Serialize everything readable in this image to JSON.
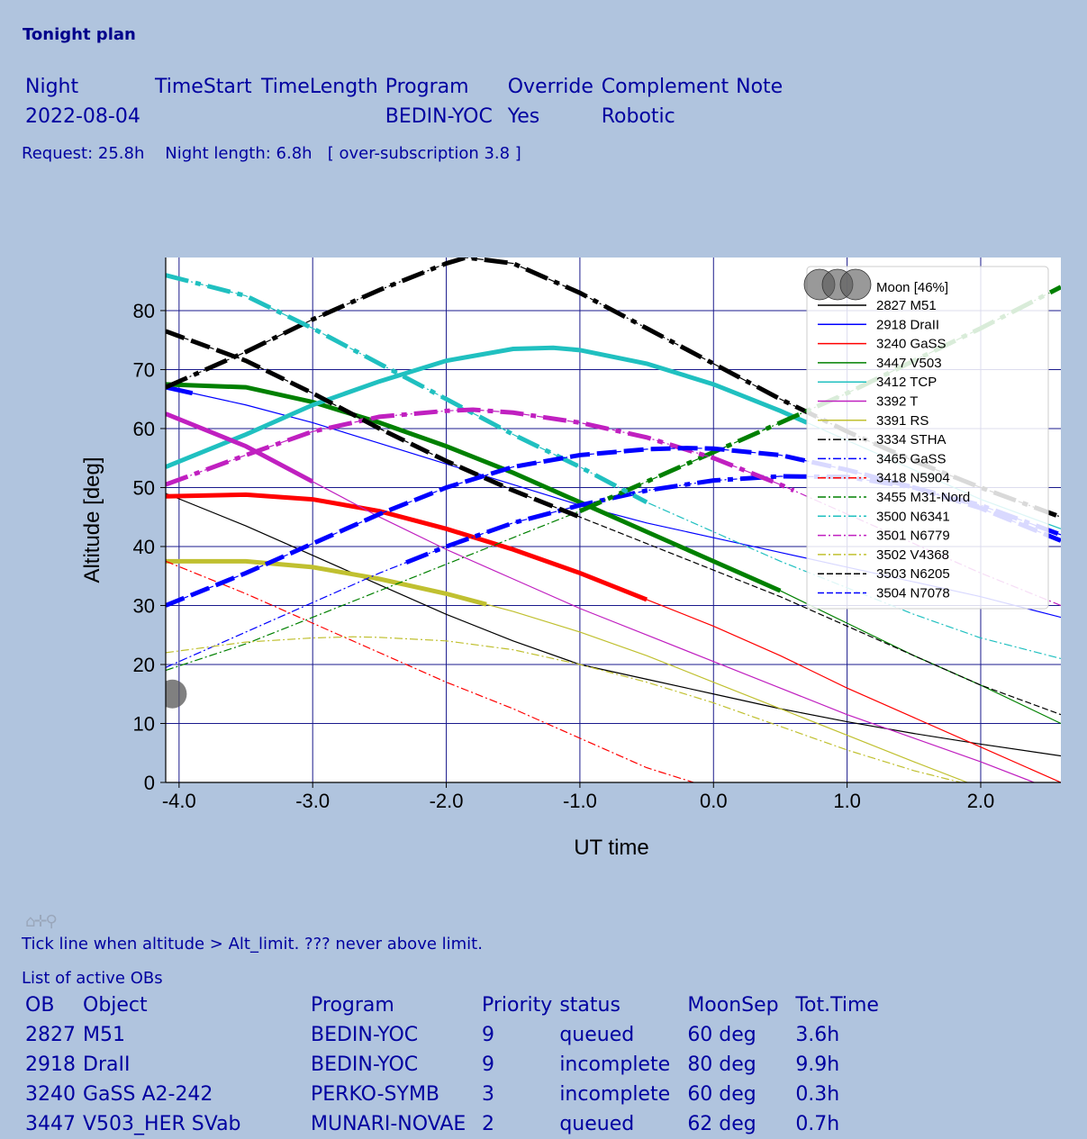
{
  "page": {
    "title": "Tonight plan",
    "night_headers": [
      "Night",
      "TimeStart",
      "TimeLength",
      "Program",
      "Override",
      "Complement",
      "Note"
    ],
    "night_row": [
      "2022-08-04",
      "",
      "",
      "BEDIN-YOC",
      "Yes",
      "Robotic",
      ""
    ],
    "summary": "Request: 25.8h    Night length: 6.8h   [ over-subscription 3.8 ]",
    "tick_note": "Tick line when altitude > Alt_limit. ??? never above limit.",
    "list_title": "List of active OBs",
    "ob_headers": [
      "OB",
      "Object",
      "Program",
      "Priority",
      "status",
      "MoonSep",
      "Tot.Time"
    ],
    "ob_rows": [
      [
        "2827",
        "M51",
        "BEDIN-YOC",
        "9",
        "queued",
        "60 deg",
        "3.6h"
      ],
      [
        "2918",
        "DraII",
        "BEDIN-YOC",
        "9",
        "incomplete",
        "80 deg",
        "9.9h"
      ],
      [
        "3240",
        "GaSS A2-242",
        "PERKO-SYMB",
        "3",
        "incomplete",
        "60 deg",
        "0.3h"
      ],
      [
        "3447",
        "V503_HER SVab",
        "MUNARI-NOVAE",
        "2",
        "queued",
        "62 deg",
        "0.7h"
      ]
    ],
    "toolbar_icons": [
      "home-icon",
      "pan-icon",
      "zoom-icon"
    ]
  },
  "chart_data": {
    "type": "line",
    "xlabel": "UT time",
    "ylabel": "Altitude [deg]",
    "xlim": [
      -4.1,
      2.6
    ],
    "ylim": [
      0,
      89
    ],
    "xticks": [
      -4.0,
      -3.0,
      -2.0,
      -1.0,
      0.0,
      1.0,
      2.0
    ],
    "xtick_labels": [
      "-4.0",
      "-3.0",
      "-2.0",
      "-1.0",
      "0.0",
      "1.0",
      "2.0"
    ],
    "yticks": [
      0,
      10,
      20,
      30,
      40,
      50,
      60,
      70,
      80
    ],
    "ytick_labels": [
      "0",
      "10",
      "20",
      "30",
      "40",
      "50",
      "60",
      "70",
      "80"
    ],
    "grid": true,
    "legend_placement": "top-right",
    "moon": {
      "label": "Moon [46%]",
      "color": "#555555",
      "x": -4.05,
      "y": 15
    },
    "series": [
      {
        "name": "2827 M51",
        "color": "#000000",
        "style": "solid",
        "width": 1.2,
        "x": [
          -4.1,
          -3.5,
          -3.0,
          -2.5,
          -2.0,
          -1.5,
          -1.0,
          -0.5,
          0.0,
          0.5,
          1.0,
          1.5,
          2.0,
          2.6
        ],
        "y": [
          49,
          43.5,
          38.5,
          33.5,
          28.5,
          24,
          20,
          17.5,
          15,
          12.5,
          10.3,
          8.3,
          6.5,
          4.5
        ],
        "thick": [
          -4.1,
          -4.1
        ]
      },
      {
        "name": "2918 DraII",
        "color": "#0000ff",
        "style": "solid",
        "width": 1.2,
        "x": [
          -4.1,
          -3.5,
          -3.0,
          -2.5,
          -2.0,
          -1.5,
          -1.0,
          -0.5,
          0.0,
          0.5,
          1.0,
          1.5,
          2.0,
          2.6
        ],
        "y": [
          67,
          64,
          61,
          57.5,
          54,
          50.5,
          47,
          44,
          41.5,
          39,
          36.5,
          34,
          31.5,
          28
        ],
        "thick": [
          -4.1,
          -3.9
        ]
      },
      {
        "name": "3240 GaSS",
        "color": "#ff0000",
        "style": "solid",
        "width": 1.2,
        "x": [
          -4.1,
          -3.5,
          -3.0,
          -2.5,
          -2.0,
          -1.5,
          -1.0,
          -0.5,
          0.0,
          0.5,
          1.0,
          1.5,
          2.0,
          2.6
        ],
        "y": [
          48.5,
          48.8,
          48,
          46,
          43,
          39.5,
          35.5,
          31,
          26.5,
          21.5,
          16,
          11,
          6,
          0
        ],
        "thick": [
          -4.1,
          -0.5
        ]
      },
      {
        "name": "3447 V503",
        "color": "#008000",
        "style": "solid",
        "width": 1.2,
        "x": [
          -4.1,
          -3.5,
          -3.0,
          -2.5,
          -2.0,
          -1.5,
          -1.0,
          -0.5,
          0.0,
          0.5,
          1.0,
          1.5,
          2.0,
          2.6
        ],
        "y": [
          67.5,
          67,
          64.5,
          61,
          57,
          52.5,
          47.5,
          42.5,
          37.5,
          32.5,
          27,
          21.5,
          16.5,
          10
        ],
        "thick": [
          -4.1,
          0.5
        ]
      },
      {
        "name": "3412 TCP",
        "color": "#20c0c0",
        "style": "solid",
        "width": 1.2,
        "x": [
          -4.1,
          -3.5,
          -3.0,
          -2.5,
          -2.0,
          -1.5,
          -1.2,
          -1.0,
          -0.5,
          0.0,
          0.5,
          1.0,
          1.5,
          2.0,
          2.6
        ],
        "y": [
          53.5,
          59,
          64,
          68,
          71.5,
          73.5,
          73.7,
          73.3,
          71,
          67.5,
          63,
          58,
          53,
          48,
          43
        ],
        "thick": [
          -4.1,
          0.7
        ]
      },
      {
        "name": "3392 T",
        "color": "#c020c0",
        "style": "solid",
        "width": 1.2,
        "x": [
          -4.1,
          -3.5,
          -3.0,
          -2.5,
          -2.0,
          -1.5,
          -1.0,
          -0.5,
          0.0,
          0.5,
          1.0,
          1.5,
          2.0,
          2.4
        ],
        "y": [
          62.5,
          57,
          51,
          45,
          39.5,
          34.5,
          29.5,
          25,
          20.5,
          16,
          11.5,
          7.5,
          3.5,
          0
        ],
        "thick": [
          -4.1,
          -3.0
        ]
      },
      {
        "name": "3391 RS",
        "color": "#c0c030",
        "style": "solid",
        "width": 1.2,
        "x": [
          -4.1,
          -3.5,
          -3.0,
          -2.5,
          -2.0,
          -1.5,
          -1.0,
          -0.5,
          0.0,
          0.5,
          1.0,
          1.5,
          1.9
        ],
        "y": [
          37.5,
          37.5,
          36.5,
          34.5,
          32,
          29,
          25.5,
          21.5,
          17,
          12.5,
          8,
          3.5,
          0
        ],
        "thick": [
          -4.1,
          -1.7
        ]
      },
      {
        "name": "3334 STHA",
        "color": "#000000",
        "style": "dashdot",
        "width": 1.2,
        "x": [
          -4.1,
          -3.5,
          -3.0,
          -2.5,
          -2.0,
          -1.85,
          -1.5,
          -1.0,
          -0.5,
          0.0,
          0.5,
          1.0,
          1.5,
          2.0,
          2.6
        ],
        "y": [
          67,
          73,
          78.5,
          83.5,
          88,
          89,
          88,
          83,
          77,
          71,
          65,
          59.5,
          54.5,
          50,
          45
        ],
        "thick": [
          -4.1,
          2.6
        ]
      },
      {
        "name": "3465 GaSS",
        "color": "#0000ff",
        "style": "dashdot",
        "width": 1.2,
        "x": [
          -4.1,
          -3.5,
          -3.0,
          -2.5,
          -2.0,
          -1.5,
          -1.0,
          -0.5,
          0.0,
          0.5,
          1.0,
          1.5,
          2.0,
          2.6
        ],
        "y": [
          19.5,
          25.5,
          30.5,
          35.5,
          40,
          44,
          47,
          49.5,
          51.2,
          51.9,
          51.8,
          50,
          47,
          42
        ],
        "thick": [
          -2.3,
          2.6
        ]
      },
      {
        "name": "3418 N5904",
        "color": "#ff0000",
        "style": "dashdot",
        "width": 1.2,
        "x": [
          -4.1,
          -3.5,
          -3.0,
          -2.5,
          -2.0,
          -1.5,
          -1.0,
          -0.5,
          -0.15
        ],
        "y": [
          37.5,
          32,
          27,
          22,
          17,
          12.5,
          7.5,
          2.5,
          0
        ],
        "thick": [
          -4.1,
          -4.1
        ]
      },
      {
        "name": "3455 M31-Nord",
        "color": "#008000",
        "style": "dashdot",
        "width": 1.2,
        "x": [
          -4.1,
          -3.5,
          -3.0,
          -2.5,
          -2.0,
          -1.5,
          -1.0,
          -0.5,
          0.0,
          0.5,
          1.0,
          1.5,
          2.0,
          2.6
        ],
        "y": [
          19,
          23.5,
          28,
          32.5,
          37,
          41.5,
          46,
          51,
          56,
          61,
          66,
          71.5,
          77,
          84
        ],
        "thick": [
          -1.0,
          2.6
        ]
      },
      {
        "name": "3500 N6341",
        "color": "#20c0c0",
        "style": "dashdot",
        "width": 1.2,
        "x": [
          -4.1,
          -3.5,
          -3.0,
          -2.5,
          -2.0,
          -1.5,
          -1.0,
          -0.5,
          0.0,
          0.5,
          1.0,
          1.5,
          2.0,
          2.6
        ],
        "y": [
          86,
          82.5,
          77,
          71,
          65,
          59,
          53.5,
          47.5,
          42.5,
          37.5,
          33,
          28.5,
          24.5,
          21
        ],
        "thick": [
          -4.1,
          -0.5
        ]
      },
      {
        "name": "3501 N6779",
        "color": "#c020c0",
        "style": "dashdot",
        "width": 1.2,
        "x": [
          -4.1,
          -3.5,
          -3.0,
          -2.5,
          -2.0,
          -1.8,
          -1.5,
          -1.0,
          -0.5,
          0.0,
          0.5,
          1.0,
          1.5,
          2.0,
          2.6
        ],
        "y": [
          50.5,
          55.5,
          59.5,
          62,
          63,
          63.2,
          62.7,
          61,
          58.5,
          55,
          50.5,
          45.5,
          40.5,
          35.5,
          30
        ],
        "thick": [
          -4.1,
          0.6
        ]
      },
      {
        "name": "3502 V4368",
        "color": "#c0c030",
        "style": "dashdot",
        "width": 1.2,
        "x": [
          -4.1,
          -3.5,
          -3.0,
          -2.7,
          -2.5,
          -2.0,
          -1.5,
          -1.0,
          -0.5,
          0.0,
          0.5,
          1.0,
          1.5,
          1.85
        ],
        "y": [
          22,
          23.8,
          24.5,
          24.7,
          24.6,
          24,
          22.5,
          20,
          17,
          13.5,
          9.5,
          5.5,
          2,
          0
        ],
        "thick": [
          -4.1,
          -4.1
        ]
      },
      {
        "name": "3503 N6205",
        "color": "#000000",
        "style": "dashed",
        "width": 1.2,
        "x": [
          -4.1,
          -3.5,
          -3.0,
          -2.5,
          -2.0,
          -1.5,
          -1.0,
          -0.5,
          0.0,
          0.5,
          1.0,
          1.5,
          2.0,
          2.6
        ],
        "y": [
          76.5,
          71.5,
          66,
          60,
          54.5,
          49.5,
          45,
          40.5,
          36,
          31.5,
          26.5,
          21.5,
          16.5,
          11.5
        ],
        "thick": [
          -4.1,
          -1.0
        ]
      },
      {
        "name": "3504 N7078",
        "color": "#0000ff",
        "style": "dashed",
        "width": 1.2,
        "x": [
          -4.1,
          -3.5,
          -3.0,
          -2.5,
          -2.0,
          -1.5,
          -1.0,
          -0.5,
          -0.2,
          0.0,
          0.5,
          1.0,
          1.5,
          2.0,
          2.6
        ],
        "y": [
          30,
          35.5,
          40.5,
          45.5,
          50,
          53.5,
          55.5,
          56.5,
          56.7,
          56.6,
          55.5,
          53,
          50,
          46.5,
          41
        ],
        "thick": [
          -4.1,
          2.6
        ]
      }
    ]
  }
}
